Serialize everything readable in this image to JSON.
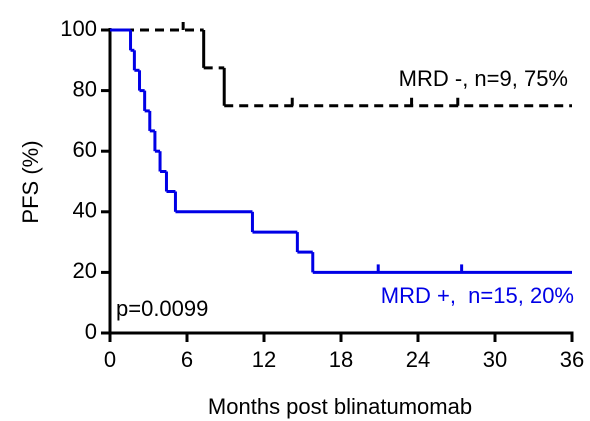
{
  "chart_data": {
    "type": "km",
    "xlabel": "Months post blinatumomab",
    "ylabel": "PFS (%)",
    "annotation": "p=0.0099",
    "xlim": [
      0,
      36
    ],
    "ylim": [
      0,
      100
    ],
    "xticks": [
      0,
      6,
      12,
      18,
      24,
      30,
      36
    ],
    "yticks": [
      0,
      20,
      40,
      60,
      80,
      100
    ],
    "series": [
      {
        "name": "MRD -, n=9, 75%",
        "color": "#000000",
        "dashed": true,
        "x": [
          0,
          7.3,
          8.9
        ],
        "values": [
          100,
          87.5,
          75
        ],
        "censor_x": [
          5.7,
          14.2,
          23.5,
          27.1
        ],
        "censor_values": [
          100,
          75,
          75,
          75
        ]
      },
      {
        "name": "MRD +,  n=15, 20%",
        "color": "#0000e6",
        "dashed": false,
        "x": [
          0,
          1.6,
          1.9,
          2.3,
          2.7,
          3.1,
          3.5,
          3.9,
          4.4,
          5.1,
          11.1,
          14.6,
          15.8
        ],
        "values": [
          100,
          93.3,
          86.7,
          80,
          73.3,
          66.7,
          60,
          53.3,
          46.7,
          40,
          33.3,
          26.7,
          20
        ],
        "censor_x": [
          20.9,
          27.4
        ],
        "censor_values": [
          20,
          20
        ]
      }
    ]
  }
}
